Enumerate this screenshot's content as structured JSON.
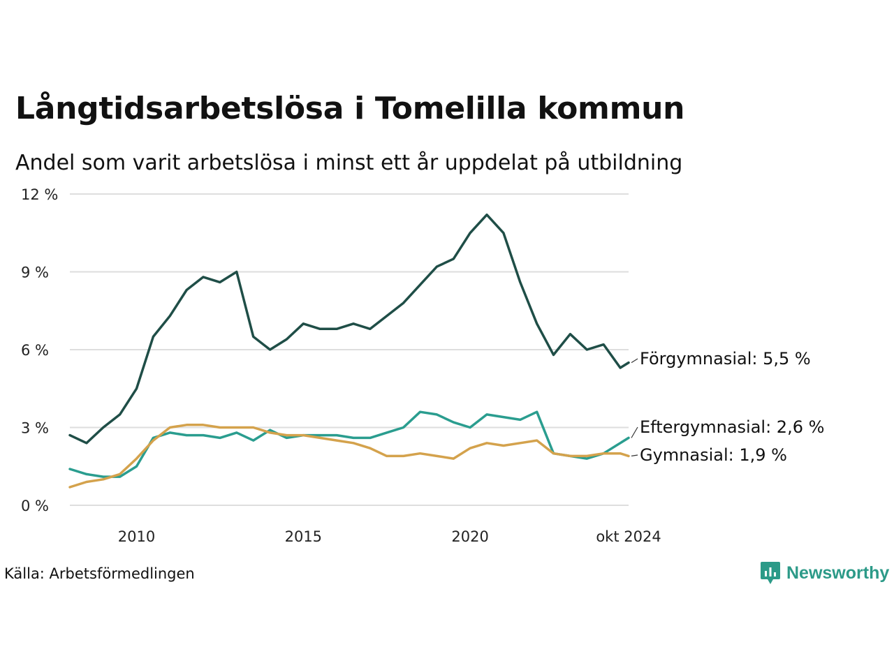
{
  "chart_data": {
    "type": "line",
    "title": "Långtidsarbetslösa i Tomelilla kommun",
    "subtitle": "Andel som varit arbetslösa i minst ett år uppdelat på utbildning",
    "source": "Källa: Arbetsförmedlingen",
    "xlabel": "",
    "ylabel": "",
    "ylim": [
      0,
      12
    ],
    "y_ticks": [
      0,
      3,
      6,
      9,
      12
    ],
    "y_tick_labels": [
      "0 %",
      "3 %",
      "6 %",
      "9 %",
      "12 %"
    ],
    "x_range": [
      "2008-01",
      "2024-10"
    ],
    "x_ticks": [
      "2010-01",
      "2015-01",
      "2020-01",
      "2024-10"
    ],
    "x_tick_labels": [
      "2010",
      "2015",
      "2020",
      "okt 2024"
    ],
    "grid": true,
    "legend": "direct labels at line ends",
    "series": [
      {
        "name": "Förgymnasial",
        "end_label": "Förgymnasial: 5,5 %",
        "color": "#1f4e47",
        "x": [
          "2008-01",
          "2008-07",
          "2009-01",
          "2009-07",
          "2010-01",
          "2010-07",
          "2011-01",
          "2011-07",
          "2012-01",
          "2012-07",
          "2013-01",
          "2013-07",
          "2014-01",
          "2014-07",
          "2015-01",
          "2015-07",
          "2016-01",
          "2016-07",
          "2017-01",
          "2017-07",
          "2018-01",
          "2018-07",
          "2019-01",
          "2019-07",
          "2020-01",
          "2020-07",
          "2021-01",
          "2021-07",
          "2022-01",
          "2022-07",
          "2023-01",
          "2023-07",
          "2024-01",
          "2024-07",
          "2024-10"
        ],
        "values": [
          2.7,
          2.4,
          3.0,
          3.5,
          4.5,
          6.5,
          7.3,
          8.3,
          8.8,
          8.6,
          9.0,
          6.5,
          6.0,
          6.4,
          7.0,
          6.8,
          6.8,
          7.0,
          6.8,
          7.3,
          7.8,
          8.5,
          9.2,
          9.5,
          10.5,
          11.2,
          10.5,
          8.6,
          7.0,
          5.8,
          6.6,
          6.0,
          6.2,
          5.3,
          5.5
        ]
      },
      {
        "name": "Eftergymnasial",
        "end_label": "Eftergymnasial: 2,6 %",
        "color": "#2a9d8f",
        "x": [
          "2008-01",
          "2008-07",
          "2009-01",
          "2009-07",
          "2010-01",
          "2010-07",
          "2011-01",
          "2011-07",
          "2012-01",
          "2012-07",
          "2013-01",
          "2013-07",
          "2014-01",
          "2014-07",
          "2015-01",
          "2015-07",
          "2016-01",
          "2016-07",
          "2017-01",
          "2017-07",
          "2018-01",
          "2018-07",
          "2019-01",
          "2019-07",
          "2020-01",
          "2020-07",
          "2021-01",
          "2021-07",
          "2022-01",
          "2022-07",
          "2023-01",
          "2023-07",
          "2024-01",
          "2024-07",
          "2024-10"
        ],
        "values": [
          1.4,
          1.2,
          1.1,
          1.1,
          1.5,
          2.6,
          2.8,
          2.7,
          2.7,
          2.6,
          2.8,
          2.5,
          2.9,
          2.6,
          2.7,
          2.7,
          2.7,
          2.6,
          2.6,
          2.8,
          3.0,
          3.6,
          3.5,
          3.2,
          3.0,
          3.5,
          3.4,
          3.3,
          3.6,
          2.0,
          1.9,
          1.8,
          2.0,
          2.4,
          2.6
        ]
      },
      {
        "name": "Gymnasial",
        "end_label": "Gymnasial: 1,9 %",
        "color": "#d4a24c",
        "x": [
          "2008-01",
          "2008-07",
          "2009-01",
          "2009-07",
          "2010-01",
          "2010-07",
          "2011-01",
          "2011-07",
          "2012-01",
          "2012-07",
          "2013-01",
          "2013-07",
          "2014-01",
          "2014-07",
          "2015-01",
          "2015-07",
          "2016-01",
          "2016-07",
          "2017-01",
          "2017-07",
          "2018-01",
          "2018-07",
          "2019-01",
          "2019-07",
          "2020-01",
          "2020-07",
          "2021-01",
          "2021-07",
          "2022-01",
          "2022-07",
          "2023-01",
          "2023-07",
          "2024-01",
          "2024-07",
          "2024-10"
        ],
        "values": [
          0.7,
          0.9,
          1.0,
          1.2,
          1.8,
          2.5,
          3.0,
          3.1,
          3.1,
          3.0,
          3.0,
          3.0,
          2.8,
          2.7,
          2.7,
          2.6,
          2.5,
          2.4,
          2.2,
          1.9,
          1.9,
          2.0,
          1.9,
          1.8,
          2.2,
          2.4,
          2.3,
          2.4,
          2.5,
          2.0,
          1.9,
          1.9,
          2.0,
          2.0,
          1.9
        ]
      }
    ]
  },
  "brand": {
    "name": "Newsworthy",
    "icon": "bar-chart-speech-icon",
    "color": "#2c9a88"
  }
}
